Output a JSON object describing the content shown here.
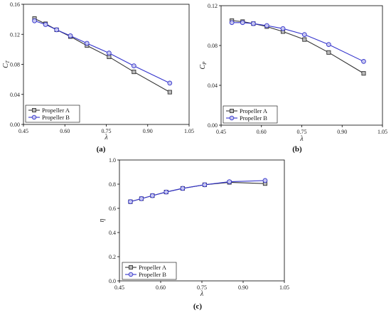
{
  "panels": [
    {
      "label": "(a)",
      "chart_data": {
        "type": "line",
        "xlabel": "λ",
        "ylabel": "CT",
        "ylabel_main": "C",
        "ylabel_sub": "T",
        "xlim": [
          0.45,
          1.05
        ],
        "ylim": [
          0.0,
          0.16
        ],
        "xticks": [
          "0.45",
          "0.60",
          "0.75",
          "0.90",
          "1.05"
        ],
        "yticks": [
          "0.00",
          "0.04",
          "0.08",
          "0.12",
          "0.16"
        ],
        "grid": false,
        "legend_position": "bottom-left",
        "series": [
          {
            "name": "Propeller A",
            "color": "#333333",
            "marker": "square",
            "x": [
              0.49,
              0.53,
              0.57,
              0.62,
              0.68,
              0.76,
              0.85,
              0.98
            ],
            "y": [
              0.141,
              0.134,
              0.126,
              0.117,
              0.105,
              0.09,
              0.07,
              0.043
            ]
          },
          {
            "name": "Propeller B",
            "color": "#3333cc",
            "marker": "circle",
            "x": [
              0.49,
              0.53,
              0.57,
              0.62,
              0.68,
              0.76,
              0.85,
              0.98
            ],
            "y": [
              0.138,
              0.133,
              0.126,
              0.118,
              0.108,
              0.095,
              0.078,
              0.055
            ]
          }
        ]
      }
    },
    {
      "label": "(b)",
      "chart_data": {
        "type": "line",
        "xlabel": "λ",
        "ylabel": "CP",
        "ylabel_main": "C",
        "ylabel_sub": "P",
        "xlim": [
          0.45,
          1.05
        ],
        "ylim": [
          0.0,
          0.12
        ],
        "xticks": [
          "0.45",
          "0.60",
          "0.75",
          "0.90",
          "1.05"
        ],
        "yticks": [
          "0.00",
          "0.04",
          "0.08",
          "0.12"
        ],
        "grid": false,
        "legend_position": "bottom-left",
        "series": [
          {
            "name": "Propeller A",
            "color": "#333333",
            "marker": "square",
            "x": [
              0.49,
              0.53,
              0.57,
              0.62,
              0.68,
              0.76,
              0.85,
              0.98
            ],
            "y": [
              0.105,
              0.104,
              0.102,
              0.099,
              0.094,
              0.086,
              0.073,
              0.052
            ]
          },
          {
            "name": "Propeller B",
            "color": "#3333cc",
            "marker": "circle",
            "x": [
              0.49,
              0.53,
              0.57,
              0.62,
              0.68,
              0.76,
              0.85,
              0.98
            ],
            "y": [
              0.103,
              0.103,
              0.102,
              0.1,
              0.097,
              0.091,
              0.081,
              0.064
            ]
          }
        ]
      }
    },
    {
      "label": "(c)",
      "chart_data": {
        "type": "line",
        "xlabel": "λ",
        "ylabel": "η",
        "ylabel_main": "η",
        "ylabel_sub": "",
        "xlim": [
          0.45,
          1.05
        ],
        "ylim": [
          0.0,
          1.0
        ],
        "xticks": [
          "0.45",
          "0.60",
          "0.75",
          "0.90",
          "1.05"
        ],
        "yticks": [
          "0.0",
          "0.2",
          "0.4",
          "0.6",
          "0.8",
          "1.0"
        ],
        "grid": false,
        "legend_position": "bottom-left",
        "series": [
          {
            "name": "Propeller A",
            "color": "#333333",
            "marker": "square",
            "x": [
              0.49,
              0.53,
              0.57,
              0.62,
              0.68,
              0.76,
              0.85,
              0.98
            ],
            "y": [
              0.655,
              0.68,
              0.705,
              0.735,
              0.765,
              0.795,
              0.815,
              0.805
            ]
          },
          {
            "name": "Propeller B",
            "color": "#3333cc",
            "marker": "circle",
            "x": [
              0.49,
              0.53,
              0.57,
              0.62,
              0.68,
              0.76,
              0.85,
              0.98
            ],
            "y": [
              0.655,
              0.68,
              0.705,
              0.735,
              0.765,
              0.795,
              0.82,
              0.83
            ]
          }
        ]
      }
    }
  ]
}
